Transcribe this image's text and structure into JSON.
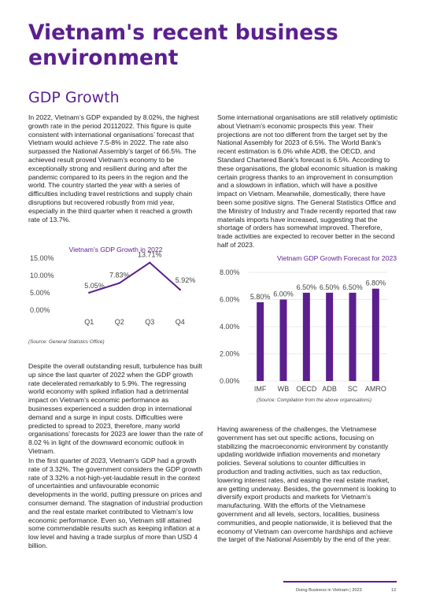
{
  "page": {
    "title": "Vietnam's recent business environment",
    "section_heading": "GDP Growth"
  },
  "col1": {
    "p1": "In 2022, Vietnam’s GDP expanded by 8.02%, the highest growth rate in the period 20112022. This figure is quite consistent with international organisations’ forecast that Vietnam would achieve 7.5-8% in 2022. The rate also surpassed the National Assembly’s target of 66.5%. The achieved result proved Vietnam’s economy to be exceptionally strong and resilient during and after the pandemic compared to its peers in the region and the world. The country started the year with a series of difficulties including travel restrictions and supply chain disruptions but recovered robustly from mid year, especially in the third quarter when it reached a growth rate of 13.7%.",
    "p2": "Despite the overall outstanding result, turbulence has built up since the last quarter of 2022 when the GDP growth rate decelerated remarkably to 5.9%. The regressing world economy with spiked inflation had a detrimental impact on Vietnam’s economic performance as businesses experienced a sudden drop in international demand and a surge in input costs. Difficulties were predicted to spread to 2023, therefore, many world organisations’ forecasts for 2023 are lower than the rate of 8.02 % in light of the downward economic outlook in Vietnam.",
    "p3": "In the first quarter of 2023, Vietnam’s GDP had a growth rate of 3.32%. The government considers the GDP growth rate of 3.32% a not-high-yet-laudable result in the context of uncertainties and unfavourable economic developments in the world, putting pressure on prices and consumer demand. The stagnation of industrial production and the real estate market contributed to Vietnam’s low economic performance. Even so, Vietnam still attained some commendable results such as keeping inflation at a low level and having a trade surplus of more than USD 4 billion."
  },
  "col2": {
    "p1": "Some international organisations are still relatively optimistic about Vietnam's economic prospects this year. Their projections are not too different from the target set by the National Assembly for 2023 of 6.5%. The World Bank's recent estimation is 6.0% while ADB, the OECD, and Standard Chartered Bank's forecast is 6.5%. According to these organisations, the global economic situation is making certain progress thanks to an improvement in consumption and a slowdown in inflation, which will have a positive impact on Vietnam. Meanwhile, domestically, there have been some positive signs. The General Statistics Office and the Ministry of Industry and Trade recently reported that raw materials imports have increased, suggesting that the shortage of orders has somewhat improved. Therefore, trade activities are expected to recover better in the second half of 2023.",
    "p2": "Having awareness of the challenges, the Vietnamese government has set out specific actions, focusing on stabilizing the macroeconomic environment by constantly updating worldwide inflation movements and monetary policies. Several solutions to counter difficulties in production and trading activities, such as tax reduction, lowering interest rates, and easing the real estate market, are getting underway. Besides, the government is looking to diversify export products and markets for Vietnam’s manufacturing. With the efforts of the Vietnamese government and all levels, sectors, localities, business communities, and people nationwide, it is believed that the economy of Vietnam can overcome hardships and achieve the target of the National Assembly by the end of the year."
  },
  "chart_data": [
    {
      "type": "line",
      "title": "Vietnam’s GDP Growth in 2022",
      "categories": [
        "Q1",
        "Q2",
        "Q3",
        "Q4"
      ],
      "values": [
        5.05,
        7.83,
        13.71,
        5.92
      ],
      "data_labels": [
        "5.05%",
        "7.83%",
        "13.71%",
        "5.92%"
      ],
      "y_ticks": [
        "0.00%",
        "5.00%",
        "10.00%",
        "15.00%"
      ],
      "ylim": [
        0,
        15
      ],
      "grid": false,
      "color": "#5b1f8f",
      "source": "(Source: General Statistics Office)"
    },
    {
      "type": "bar",
      "title": "Vietnam GDP Growth Forecast for 2023",
      "categories": [
        "IMF",
        "WB",
        "OECD",
        "ADB",
        "SC",
        "AMRO"
      ],
      "values": [
        5.8,
        6.0,
        6.5,
        6.5,
        6.5,
        6.8
      ],
      "data_labels": [
        "5.80%",
        "6.00%",
        "6.50%",
        "6.50%",
        "6.50%",
        "6.80%"
      ],
      "y_ticks": [
        "0.00%",
        "2.00%",
        "4.00%",
        "6.00%",
        "8.00%"
      ],
      "ylim": [
        0,
        8
      ],
      "grid": true,
      "color": "#5b1f8f",
      "source": "(Source: Compilation from the above organisations)"
    }
  ],
  "footer": {
    "text": "Doing Business in Vietnam | 2023",
    "page_number": "12"
  }
}
